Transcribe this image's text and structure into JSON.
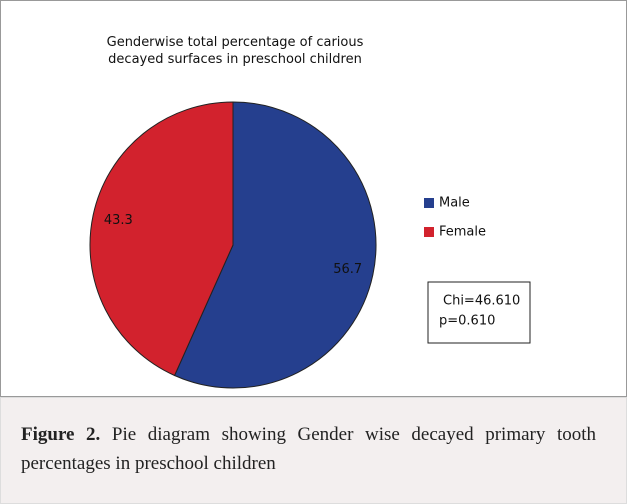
{
  "chart_data": {
    "type": "pie",
    "title": "Genderwise total percentage of carious decayed surfaces in preschool children",
    "categories": [
      "Male",
      "Female"
    ],
    "values": [
      56.7,
      43.3
    ],
    "colors": [
      "#253f8e",
      "#d2222d"
    ],
    "legend": "right",
    "annotations": [
      "Chi=46.610",
      "p=0.610"
    ]
  },
  "caption": {
    "label": "Figure 2.",
    "text": "Pie diagram showing Gender wise decayed primary tooth percentages in preschool children"
  }
}
